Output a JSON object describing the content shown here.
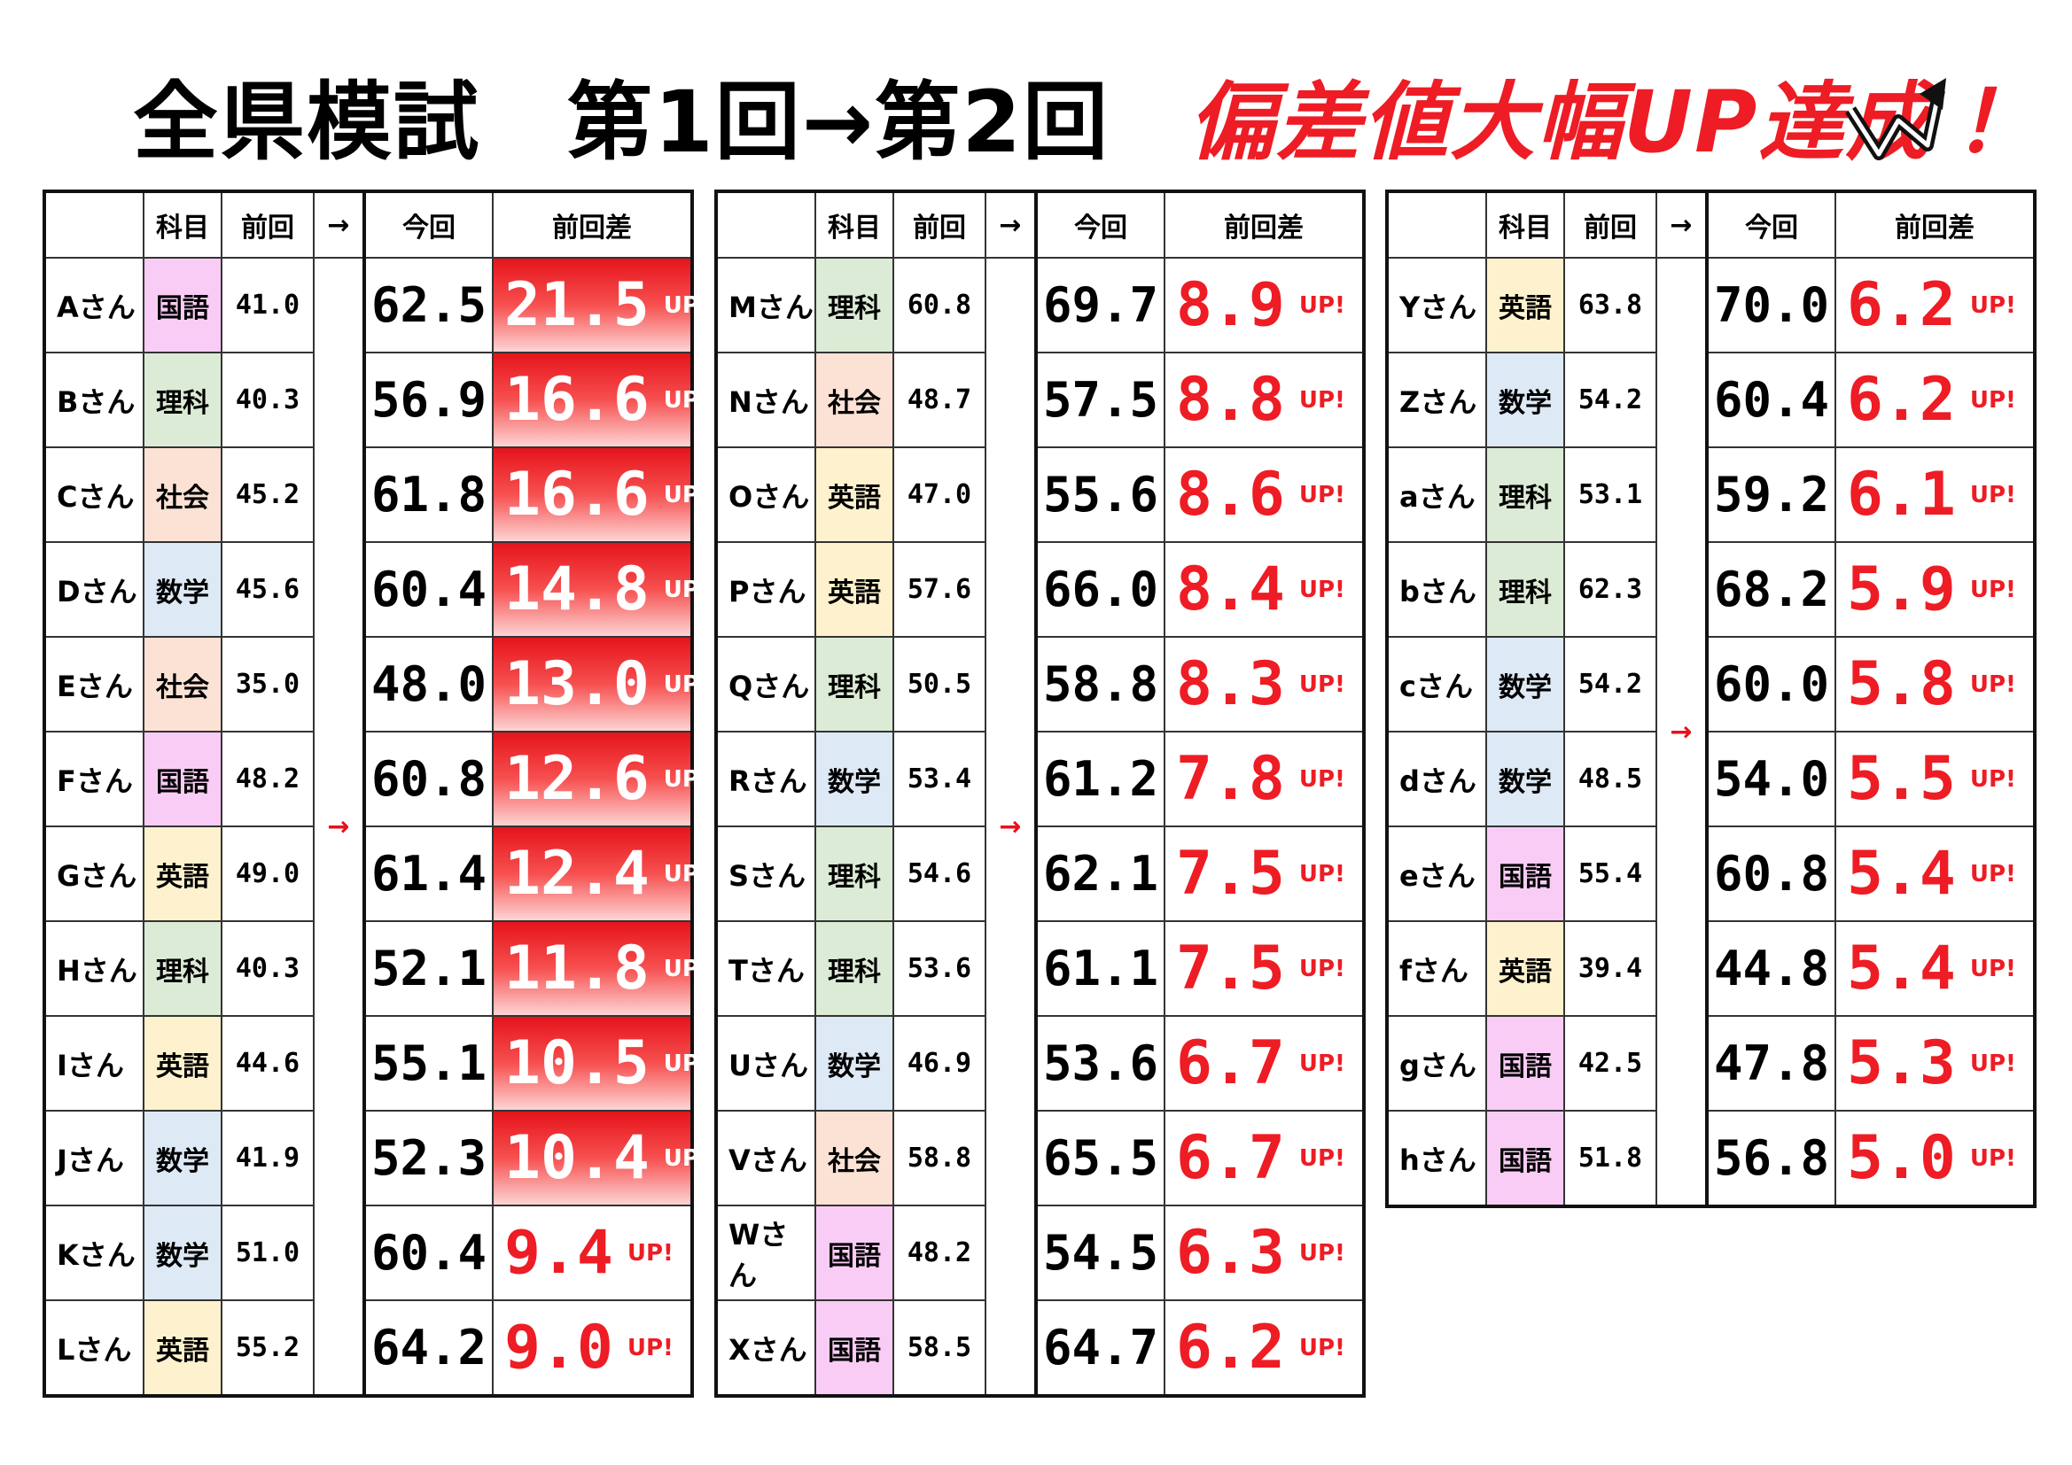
{
  "title": {
    "main": "全県模試　第1回→第2回",
    "highlight": "偏差値大幅UP達成！"
  },
  "up_label": "UP!",
  "tables": [
    {
      "columns": [
        "科目",
        "前回",
        "→",
        "今回",
        "前回差"
      ],
      "rows": [
        {
          "name": "Aさん",
          "subject": "国語",
          "color": "#f9ccf6",
          "previous": "41.0",
          "current": "62.5",
          "diff": "21.5",
          "highlight": true
        },
        {
          "name": "Bさん",
          "subject": "理科",
          "color": "#dcebd5",
          "previous": "40.3",
          "current": "56.9",
          "diff": "16.6",
          "highlight": true
        },
        {
          "name": "Cさん",
          "subject": "社会",
          "color": "#fbe2d5",
          "previous": "45.2",
          "current": "61.8",
          "diff": "16.6",
          "highlight": true
        },
        {
          "name": "Dさん",
          "subject": "数学",
          "color": "#dde9f5",
          "previous": "45.6",
          "current": "60.4",
          "diff": "14.8",
          "highlight": true
        },
        {
          "name": "Eさん",
          "subject": "社会",
          "color": "#fbe2d5",
          "previous": "35.0",
          "current": "48.0",
          "diff": "13.0",
          "highlight": true
        },
        {
          "name": "Fさん",
          "subject": "国語",
          "color": "#f9ccf6",
          "previous": "48.2",
          "current": "60.8",
          "diff": "12.6",
          "highlight": true
        },
        {
          "name": "Gさん",
          "subject": "英語",
          "color": "#fdf2cd",
          "previous": "49.0",
          "current": "61.4",
          "diff": "12.4",
          "highlight": true
        },
        {
          "name": "Hさん",
          "subject": "理科",
          "color": "#dcebd5",
          "previous": "40.3",
          "current": "52.1",
          "diff": "11.8",
          "highlight": true
        },
        {
          "name": "Iさん",
          "subject": "英語",
          "color": "#fdf2cd",
          "previous": "44.6",
          "current": "55.1",
          "diff": "10.5",
          "highlight": true
        },
        {
          "name": "Jさん",
          "subject": "数学",
          "color": "#dde9f5",
          "previous": "41.9",
          "current": "52.3",
          "diff": "10.4",
          "highlight": true
        },
        {
          "name": "Kさん",
          "subject": "数学",
          "color": "#dde9f5",
          "previous": "51.0",
          "current": "60.4",
          "diff": "9.4",
          "highlight": false
        },
        {
          "name": "Lさん",
          "subject": "英語",
          "color": "#fdf2cd",
          "previous": "55.2",
          "current": "64.2",
          "diff": "9.0",
          "highlight": false
        }
      ]
    },
    {
      "columns": [
        "科目",
        "前回",
        "→",
        "今回",
        "前回差"
      ],
      "rows": [
        {
          "name": "Mさん",
          "subject": "理科",
          "color": "#dcebd5",
          "previous": "60.8",
          "current": "69.7",
          "diff": "8.9",
          "highlight": false
        },
        {
          "name": "Nさん",
          "subject": "社会",
          "color": "#fbe2d5",
          "previous": "48.7",
          "current": "57.5",
          "diff": "8.8",
          "highlight": false
        },
        {
          "name": "Oさん",
          "subject": "英語",
          "color": "#fdf2cd",
          "previous": "47.0",
          "current": "55.6",
          "diff": "8.6",
          "highlight": false
        },
        {
          "name": "Pさん",
          "subject": "英語",
          "color": "#fdf2cd",
          "previous": "57.6",
          "current": "66.0",
          "diff": "8.4",
          "highlight": false
        },
        {
          "name": "Qさん",
          "subject": "理科",
          "color": "#dcebd5",
          "previous": "50.5",
          "current": "58.8",
          "diff": "8.3",
          "highlight": false
        },
        {
          "name": "Rさん",
          "subject": "数学",
          "color": "#dde9f5",
          "previous": "53.4",
          "current": "61.2",
          "diff": "7.8",
          "highlight": false
        },
        {
          "name": "Sさん",
          "subject": "理科",
          "color": "#dcebd5",
          "previous": "54.6",
          "current": "62.1",
          "diff": "7.5",
          "highlight": false
        },
        {
          "name": "Tさん",
          "subject": "理科",
          "color": "#dcebd5",
          "previous": "53.6",
          "current": "61.1",
          "diff": "7.5",
          "highlight": false
        },
        {
          "name": "Uさん",
          "subject": "数学",
          "color": "#dde9f5",
          "previous": "46.9",
          "current": "53.6",
          "diff": "6.7",
          "highlight": false
        },
        {
          "name": "Vさん",
          "subject": "社会",
          "color": "#fbe2d5",
          "previous": "58.8",
          "current": "65.5",
          "diff": "6.7",
          "highlight": false
        },
        {
          "name": "Wさん",
          "subject": "国語",
          "color": "#f9ccf6",
          "previous": "48.2",
          "current": "54.5",
          "diff": "6.3",
          "highlight": false
        },
        {
          "name": "Xさん",
          "subject": "国語",
          "color": "#f9ccf6",
          "previous": "58.5",
          "current": "64.7",
          "diff": "6.2",
          "highlight": false
        }
      ]
    },
    {
      "columns": [
        "科目",
        "前回",
        "→",
        "今回",
        "前回差"
      ],
      "rows": [
        {
          "name": "Yさん",
          "subject": "英語",
          "color": "#fdf2cd",
          "previous": "63.8",
          "current": "70.0",
          "diff": "6.2",
          "highlight": false
        },
        {
          "name": "Zさん",
          "subject": "数学",
          "color": "#dde9f5",
          "previous": "54.2",
          "current": "60.4",
          "diff": "6.2",
          "highlight": false
        },
        {
          "name": "aさん",
          "subject": "理科",
          "color": "#dcebd5",
          "previous": "53.1",
          "current": "59.2",
          "diff": "6.1",
          "highlight": false
        },
        {
          "name": "bさん",
          "subject": "理科",
          "color": "#dcebd5",
          "previous": "62.3",
          "current": "68.2",
          "diff": "5.9",
          "highlight": false
        },
        {
          "name": "cさん",
          "subject": "数学",
          "color": "#dde9f5",
          "previous": "54.2",
          "current": "60.0",
          "diff": "5.8",
          "highlight": false
        },
        {
          "name": "dさん",
          "subject": "数学",
          "color": "#dde9f5",
          "previous": "48.5",
          "current": "54.0",
          "diff": "5.5",
          "highlight": false
        },
        {
          "name": "eさん",
          "subject": "国語",
          "color": "#f9ccf6",
          "previous": "55.4",
          "current": "60.8",
          "diff": "5.4",
          "highlight": false
        },
        {
          "name": "fさん",
          "subject": "英語",
          "color": "#fdf2cd",
          "previous": "39.4",
          "current": "44.8",
          "diff": "5.4",
          "highlight": false
        },
        {
          "name": "gさん",
          "subject": "国語",
          "color": "#f9ccf6",
          "previous": "42.5",
          "current": "47.8",
          "diff": "5.3",
          "highlight": false
        },
        {
          "name": "hさん",
          "subject": "国語",
          "color": "#f9ccf6",
          "previous": "51.8",
          "current": "56.8",
          "diff": "5.0",
          "highlight": false
        }
      ]
    }
  ]
}
